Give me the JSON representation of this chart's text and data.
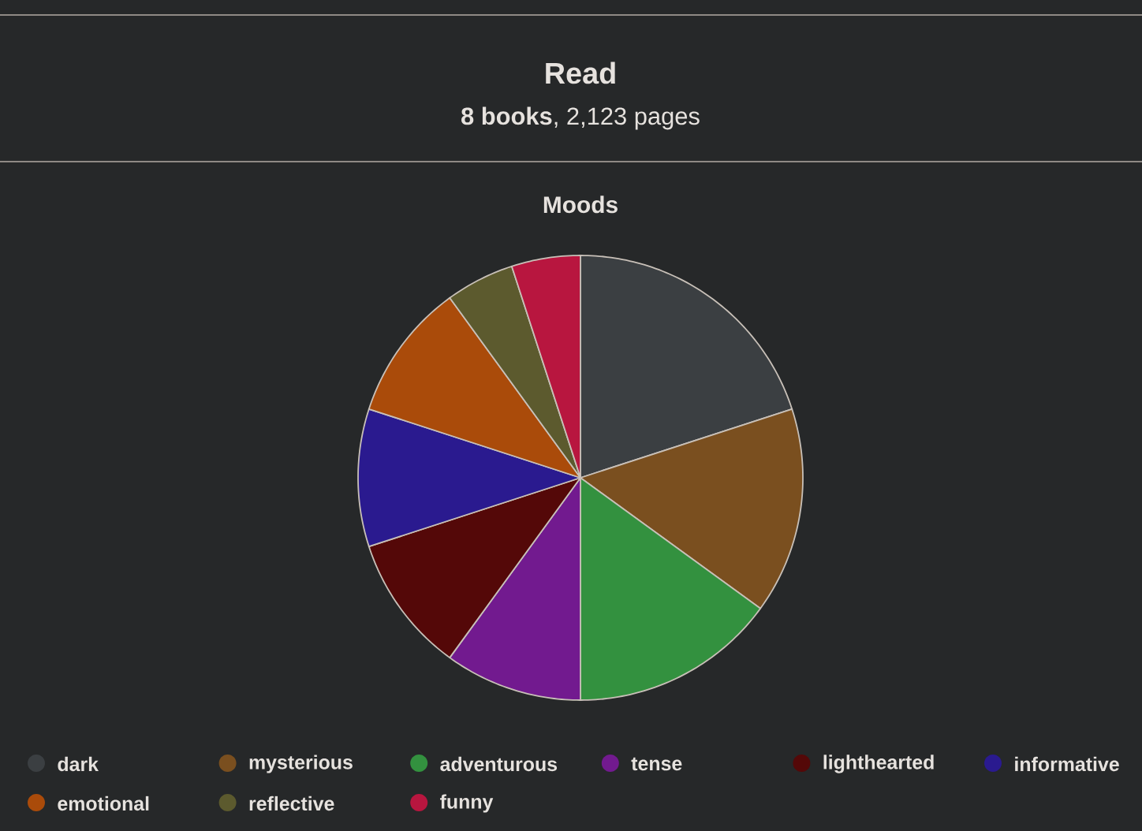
{
  "chart_data": {
    "type": "pie",
    "title": "Moods",
    "annotations": [
      "Read",
      "**8 books**, 2,123 pages"
    ],
    "categories": [
      "dark",
      "mysterious",
      "adventurous",
      "tense",
      "lighthearted",
      "informative",
      "emotional",
      "reflective",
      "funny"
    ],
    "values": [
      20,
      15,
      15,
      10,
      10,
      10,
      10,
      5,
      5
    ],
    "colors": [
      "#3b3f42",
      "#7a4f1f",
      "#33913f",
      "#721a8f",
      "#540808",
      "#2a1a8f",
      "#aa4b0a",
      "#5c5a2e",
      "#b8163f"
    ],
    "legend": "bottom"
  }
}
